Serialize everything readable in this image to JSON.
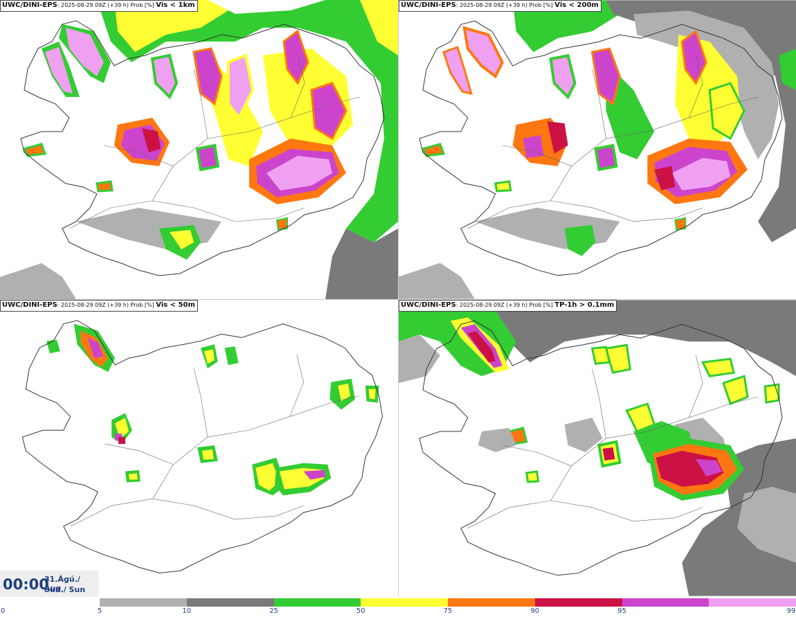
{
  "panels": [
    {
      "model": "UWC/DINI-EPS",
      "run": "2025-08-29 09Z (+39 h) Prob [%]",
      "variable": "Vis < 1km"
    },
    {
      "model": "UWC/DINI-EPS",
      "run": "2025-08-29 09Z (+39 h) Prob [%]",
      "variable": "Vis < 200m"
    },
    {
      "model": "UWC/DINI-EPS",
      "run": "2025-08-29 09Z (+39 h) Prob [%]",
      "variable": "Vis < 50m"
    },
    {
      "model": "UWC/DINI-EPS",
      "run": "2025-08-29 09Z (+39 h) Prob [%]",
      "variable": "TP-1h > 0.1mm"
    }
  ],
  "valid_time": {
    "hhmm": "00:00",
    "date": "31.Ágú./ Aug",
    "day": "Sun./ Sun"
  },
  "legend": {
    "ticks": [
      "0",
      "5",
      "10",
      "25",
      "50",
      "75",
      "90",
      "95",
      "99"
    ],
    "colors": [
      "#b0b0b0",
      "#7a7a7a",
      "#33cc33",
      "#ffff33",
      "#ff7711",
      "#cc1144",
      "#cc44cc",
      "#f0a0f0"
    ]
  }
}
